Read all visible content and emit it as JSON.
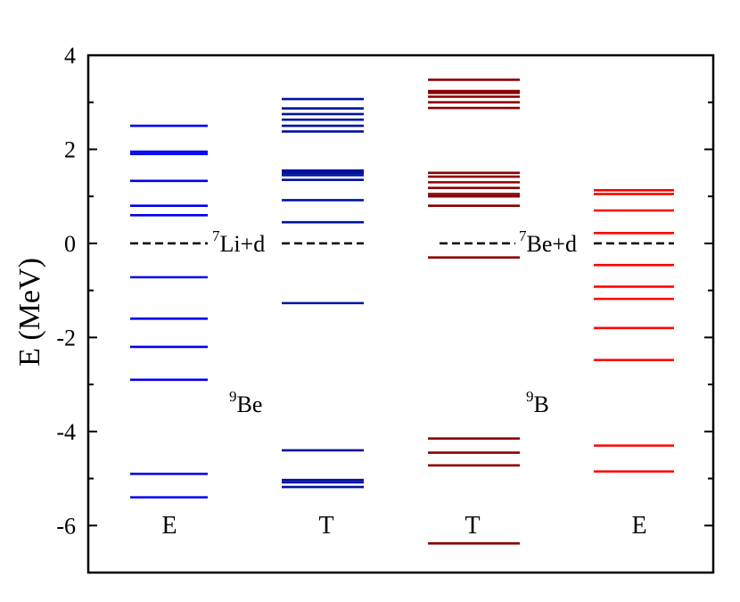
{
  "chart_data": {
    "type": "level-diagram",
    "ylabel": "E (MeV)",
    "ylim": [
      -7,
      4
    ],
    "yticks": [
      "4",
      "2",
      "0",
      "-2",
      "-4",
      "-6"
    ],
    "yticks_values": [
      4,
      2,
      0,
      -2,
      -4,
      -6
    ],
    "columns": [
      {
        "label": "E",
        "color": "#0000ee",
        "levels": [
          2.5,
          1.9,
          1.95,
          1.33,
          0.8,
          0.6,
          -0.72,
          -1.6,
          -2.2,
          -2.9,
          -4.9,
          -5.4
        ]
      },
      {
        "label": "T",
        "color": "#00129e",
        "levels": [
          3.07,
          2.87,
          2.75,
          2.63,
          2.5,
          2.38,
          1.55,
          1.5,
          1.45,
          1.35,
          0.92,
          0.45,
          -1.27,
          -4.4,
          -5.03,
          -5.08,
          -5.18
        ]
      },
      {
        "label": "T",
        "color": "#8b0000",
        "levels": [
          3.48,
          3.24,
          3.2,
          3.12,
          3.0,
          2.88,
          1.5,
          1.42,
          1.3,
          1.18,
          1.05,
          1.0,
          0.8,
          -0.3,
          -4.15,
          -4.45,
          -4.72,
          -6.38
        ]
      },
      {
        "label": "E",
        "color": "#ff0000",
        "levels": [
          1.13,
          1.05,
          0.7,
          0.22,
          -0.46,
          -0.92,
          -1.18,
          -1.8,
          -2.48,
          -4.3,
          -4.85
        ]
      }
    ],
    "thresholds": [
      {
        "name": "7Li+d",
        "sup": "7",
        "text": "Li+d",
        "energy": 0
      },
      {
        "name": "7Be+d",
        "sup": "7",
        "text": "Be+d",
        "energy": 0
      }
    ],
    "nuclei": [
      {
        "sup": "9",
        "text": "Be"
      },
      {
        "sup": "9",
        "text": "B"
      }
    ]
  }
}
